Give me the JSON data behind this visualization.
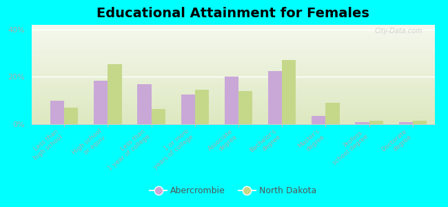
{
  "title": "Educational Attainment for Females",
  "categories": [
    "Less than\nhigh school",
    "High school\nor equiv.",
    "Less than\n1 year of college",
    "1 or more\nyears of college",
    "Associate\ndegree",
    "Bachelor's\ndegree",
    "Master's\ndegree",
    "Profess.\nschool degree",
    "Doctorate\ndegree"
  ],
  "abercrombie": [
    10.0,
    18.5,
    17.0,
    12.5,
    20.0,
    22.5,
    3.5,
    1.0,
    1.0
  ],
  "north_dakota": [
    7.0,
    25.5,
    6.5,
    14.5,
    14.0,
    27.0,
    9.0,
    1.5,
    1.5
  ],
  "abercrombie_color": "#c9a8d8",
  "north_dakota_color": "#c5d88a",
  "background_color": "#00ffff",
  "plot_bg_color_top": "#f5f8ee",
  "plot_bg_color_bottom": "#dde8c0",
  "yticks": [
    0,
    20,
    40
  ],
  "ylim": [
    0,
    42
  ],
  "watermark": "City-Data.com",
  "title_fontsize": 14,
  "tick_label_color": "#aaaaaa",
  "legend_labels": [
    "Abercrombie",
    "North Dakota"
  ],
  "bar_width": 0.32
}
